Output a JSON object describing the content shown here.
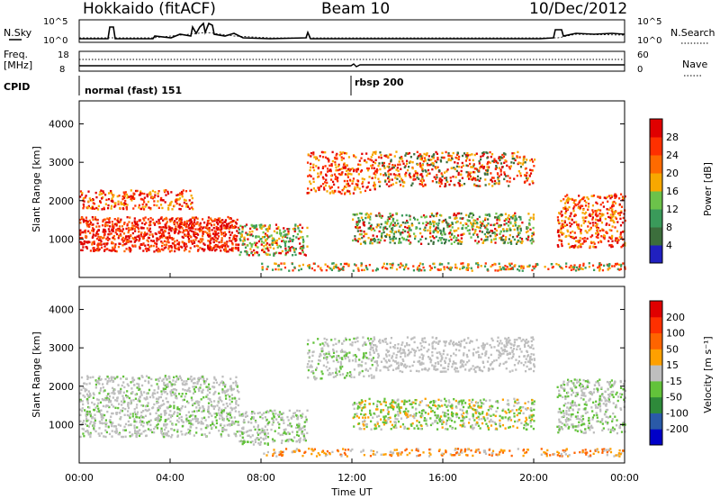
{
  "header": {
    "station": "Hokkaido (fitACF)",
    "beam": "Beam 10",
    "date": "10/Dec/2012"
  },
  "top_panels": {
    "nsky_label": "N.Sky",
    "nsearch_label": "N.Search",
    "n_ticks_left": [
      "10^5",
      "10^0"
    ],
    "n_ticks_right": [
      "10^5",
      "10^0"
    ],
    "freq_label": [
      "Freq.",
      "[MHz]"
    ],
    "freq_ticks": [
      "18",
      "8"
    ],
    "nave_label": "Nave",
    "nave_ticks": [
      "60",
      "0"
    ],
    "cpid_label": "CPID",
    "cpid_modes": [
      "normal (fast) 151",
      "rbsp 200"
    ]
  },
  "colors": {
    "power_scale": [
      "#0000ff",
      "#2020c0",
      "#3c6e3c",
      "#3a9a5a",
      "#6cc24a",
      "#f7a800",
      "#ff6a00",
      "#ff3000",
      "#e00000"
    ],
    "velocity_scale": [
      "#0000c8",
      "#2a5aa8",
      "#2e8a3a",
      "#62c23a",
      "#bebebe",
      "#ffa000",
      "#ff6400",
      "#ff3000",
      "#e00000"
    ]
  },
  "chart_data": [
    {
      "type": "heatmap",
      "title": "Power",
      "xlabel": "",
      "ylabel": "Slant Range [km]",
      "x_ticks": [],
      "y_ticks": [
        "1000",
        "2000",
        "3000",
        "4000"
      ],
      "ylim": [
        0,
        4600
      ],
      "colorbar": {
        "label": "Power [dB]",
        "ticks": [
          "4",
          "8",
          "12",
          "16",
          "20",
          "24",
          "28"
        ],
        "range": [
          0,
          30
        ]
      }
    },
    {
      "type": "heatmap",
      "title": "Velocity",
      "xlabel": "Time UT",
      "ylabel": "Slant Range [km]",
      "x_ticks": [
        "00:00",
        "04:00",
        "08:00",
        "12:00",
        "16:00",
        "20:00",
        "00:00"
      ],
      "y_ticks": [
        "1000",
        "2000",
        "3000",
        "4000"
      ],
      "ylim": [
        0,
        4600
      ],
      "colorbar": {
        "label": "Velocity [m s⁻¹]",
        "ticks": [
          "200",
          "100",
          "50",
          "15",
          "-15",
          "-50",
          "-100",
          "-200"
        ]
      }
    }
  ]
}
